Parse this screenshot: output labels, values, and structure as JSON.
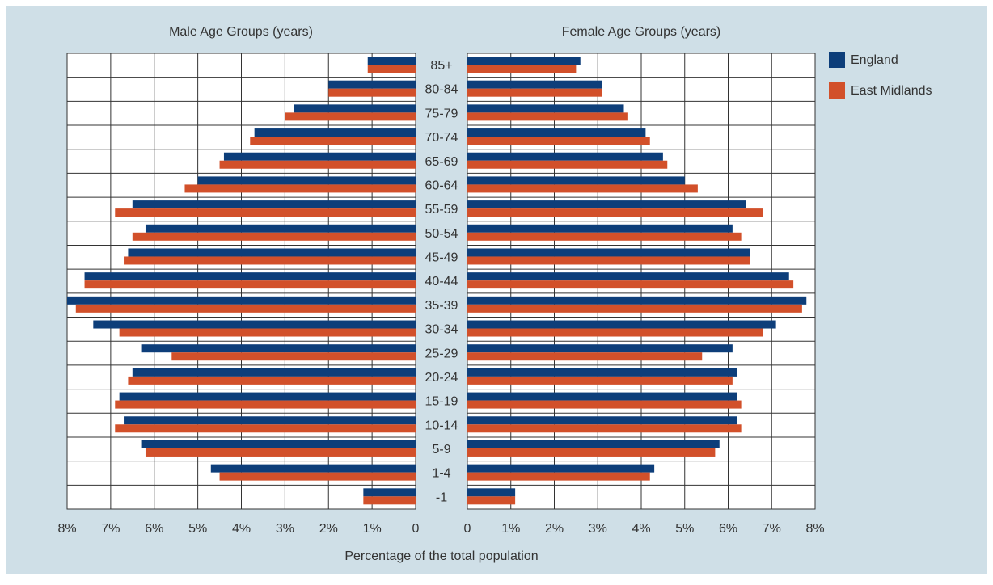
{
  "chart_data": {
    "type": "pyramid",
    "male_title": "Male Age Groups (years)",
    "female_title": "Female Age Groups (years)",
    "xlabel": "Percentage of the total population",
    "categories": [
      "85+",
      "80-84",
      "75-79",
      "70-74",
      "65-69",
      "60-64",
      "55-59",
      "50-54",
      "45-49",
      "40-44",
      "35-39",
      "30-34",
      "25-29",
      "20-24",
      "15-19",
      "10-14",
      "5-9",
      "1-4",
      "-1"
    ],
    "series": [
      {
        "name": "England",
        "color": "#0d3e7a",
        "male": [
          1.1,
          2.0,
          2.8,
          3.7,
          4.4,
          5.0,
          6.5,
          6.2,
          6.6,
          7.6,
          8.0,
          7.4,
          6.3,
          6.5,
          6.8,
          6.7,
          6.3,
          4.7,
          1.2
        ],
        "female": [
          2.6,
          3.1,
          3.6,
          4.1,
          4.5,
          5.0,
          6.4,
          6.1,
          6.5,
          7.4,
          7.8,
          7.1,
          6.1,
          6.2,
          6.2,
          6.2,
          5.8,
          4.3,
          1.1
        ]
      },
      {
        "name": "East Midlands",
        "color": "#d2502a",
        "male": [
          1.1,
          2.0,
          3.0,
          3.8,
          4.5,
          5.3,
          6.9,
          6.5,
          6.7,
          7.6,
          7.8,
          6.8,
          5.6,
          6.6,
          6.9,
          6.9,
          6.2,
          4.5,
          1.2
        ],
        "female": [
          2.5,
          3.1,
          3.7,
          4.2,
          4.6,
          5.3,
          6.8,
          6.3,
          6.5,
          7.5,
          7.7,
          6.8,
          5.4,
          6.1,
          6.3,
          6.3,
          5.7,
          4.2,
          1.1
        ]
      }
    ],
    "xlim": [
      0,
      8
    ],
    "xticks": [
      0,
      {
        "value": 1,
        "label": "1%"
      },
      {
        "value": 2,
        "label": "2%"
      },
      {
        "value": 3,
        "label": "3%"
      },
      {
        "value": 4,
        "label": "4%"
      },
      {
        "value": 5,
        "label": "5%"
      },
      {
        "value": 6,
        "label": "6%"
      },
      {
        "value": 7,
        "label": "7%"
      },
      {
        "value": 8,
        "label": "8%"
      }
    ],
    "grid": true
  }
}
